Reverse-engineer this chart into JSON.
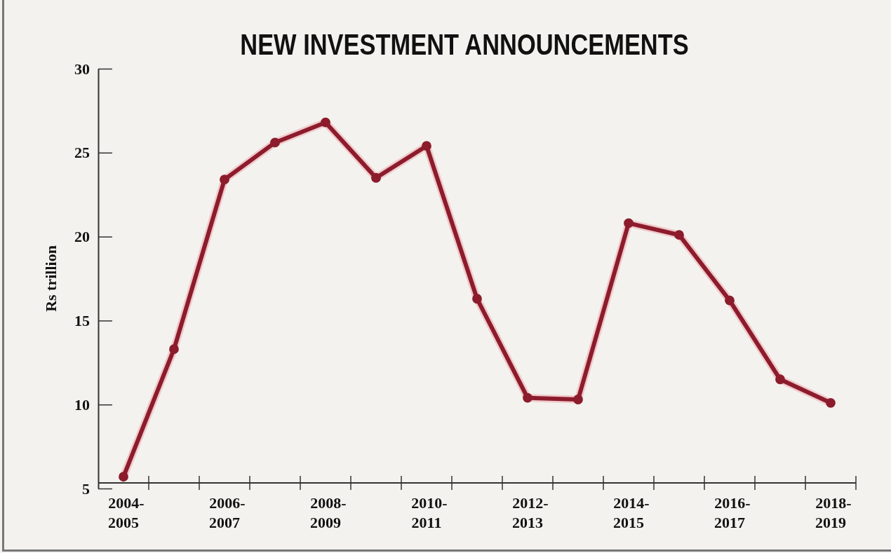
{
  "chart_data": {
    "type": "line",
    "title": "NEW INVESTMENT ANNOUNCEMENTS",
    "ylabel": "Rs trillion",
    "categories": [
      "2004-2005",
      null,
      "2006-2007",
      null,
      "2008-2009",
      null,
      "2010-2011",
      null,
      "2012-2013",
      null,
      "2014-2015",
      null,
      "2016-2017",
      null,
      "2018-2019"
    ],
    "series": [
      {
        "color": "#8c1c2c",
        "values": [
          5.7,
          13.3,
          23.4,
          25.6,
          26.8,
          23.5,
          25.4,
          16.3,
          10.4,
          10.3,
          20.8,
          20.1,
          16.2,
          11.5,
          10.1
        ]
      }
    ],
    "ylim": [
      5,
      30
    ],
    "yticks": [
      5,
      10,
      15,
      20,
      25,
      30
    ],
    "marker": "circle",
    "line_style": "solid"
  }
}
